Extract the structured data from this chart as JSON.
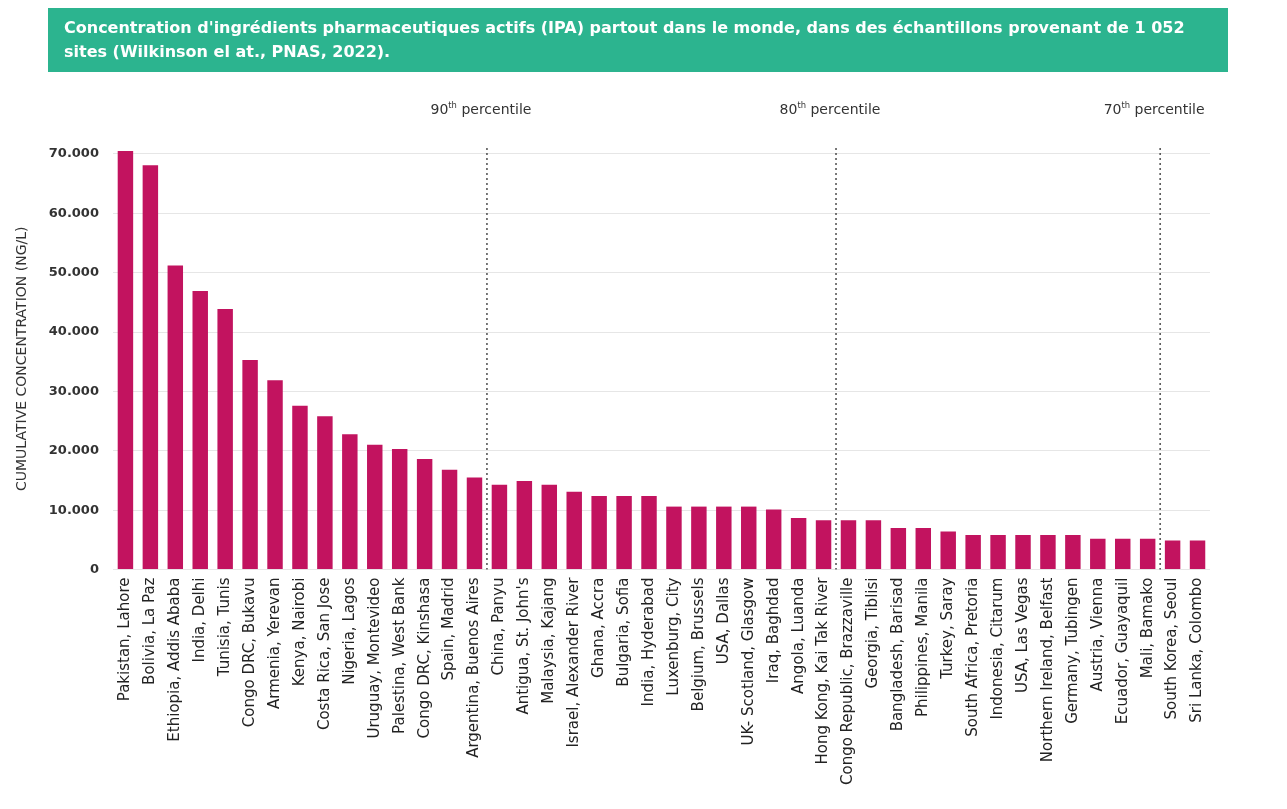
{
  "chart_data": {
    "type": "bar",
    "title": "Concentration d'ingrédients pharmaceutiques actifs (IPA) partout dans le monde, dans des échantillons provenant de 1 052 sites (Wilkinson el at., PNAS, 2022).",
    "ylabel": "CUMULATIVE CONCENTRATION (NG/L)",
    "categories": [
      "Pakistan, Lahore",
      "Bolivia, La Paz",
      "Ethiopia, Addis Ababa",
      "India, Delhi",
      "Tunisia, Tunis",
      "Congo DRC, Bukavu",
      "Armenia, Yerevan",
      "Kenya, Nairobi",
      "Costa Rica, San Jose",
      "Nigeria, Lagos",
      "Uruguay, Montevideo",
      "Palestina, West Bank",
      "Congo DRC, Kinshasa",
      "Spain, Madrid",
      "Argentina, Buenos Aires",
      "China, Panyu",
      "Antigua, St. John's",
      "Malaysia, Kajang",
      "Israel, Alexander River",
      "Ghana, Accra",
      "Bulgaria, Sofia",
      "India, Hyderabad",
      "Luxenburg, City",
      "Belgium, Brussels",
      "USA, Dallas",
      "UK- Scotland, Glasgow",
      "Iraq, Baghdad",
      "Angola, Luanda",
      "Hong Kong, Kai Tak River",
      "Congo Republic, Brazzaville",
      "Georgia, Tiblisi",
      "Bangladesh, Barisad",
      "Philippines, Manila",
      "Turkey, Saray",
      "South Africa, Pretoria",
      "Indonesia, Citarum",
      "USA, Las Vegas",
      "Northern Ireland, Belfast",
      "Germany, Tubingen",
      "Austria, Vienna",
      "Ecuador, Guayaquil",
      "Mali, Bamako",
      "South Korea, Seoul",
      "Sri Lanka, Colombo"
    ],
    "values": [
      70500,
      68100,
      51200,
      46900,
      43900,
      35300,
      31900,
      27600,
      25800,
      22800,
      21000,
      20300,
      18600,
      16800,
      15500,
      14300,
      14900,
      14300,
      13100,
      12400,
      12400,
      12400,
      10600,
      10600,
      10600,
      10600,
      10100,
      8700,
      8300,
      8300,
      8300,
      7000,
      7000,
      6400,
      5800,
      5800,
      5800,
      5800,
      5800,
      5200,
      5200,
      5200,
      4900,
      4900
    ],
    "color": "#c2135f",
    "ylim": [
      0,
      71000
    ],
    "yticks": [
      0,
      {
        "value": 10000,
        "label": "10.000"
      },
      {
        "value": 20000,
        "label": "20.000"
      },
      {
        "value": 30000,
        "label": "30.000"
      },
      {
        "value": 40000,
        "label": "40.000"
      },
      {
        "value": 50000,
        "label": "50.000"
      },
      {
        "value": 60000,
        "label": "60.000"
      },
      {
        "value": 70000,
        "label": "70.000"
      }
    ],
    "grid": "y",
    "legend": false,
    "annotations": [
      "90$^{th}$ percentile",
      "80$^{th}$ percentile",
      "70$^{th}$ percentile"
    ]
  }
}
